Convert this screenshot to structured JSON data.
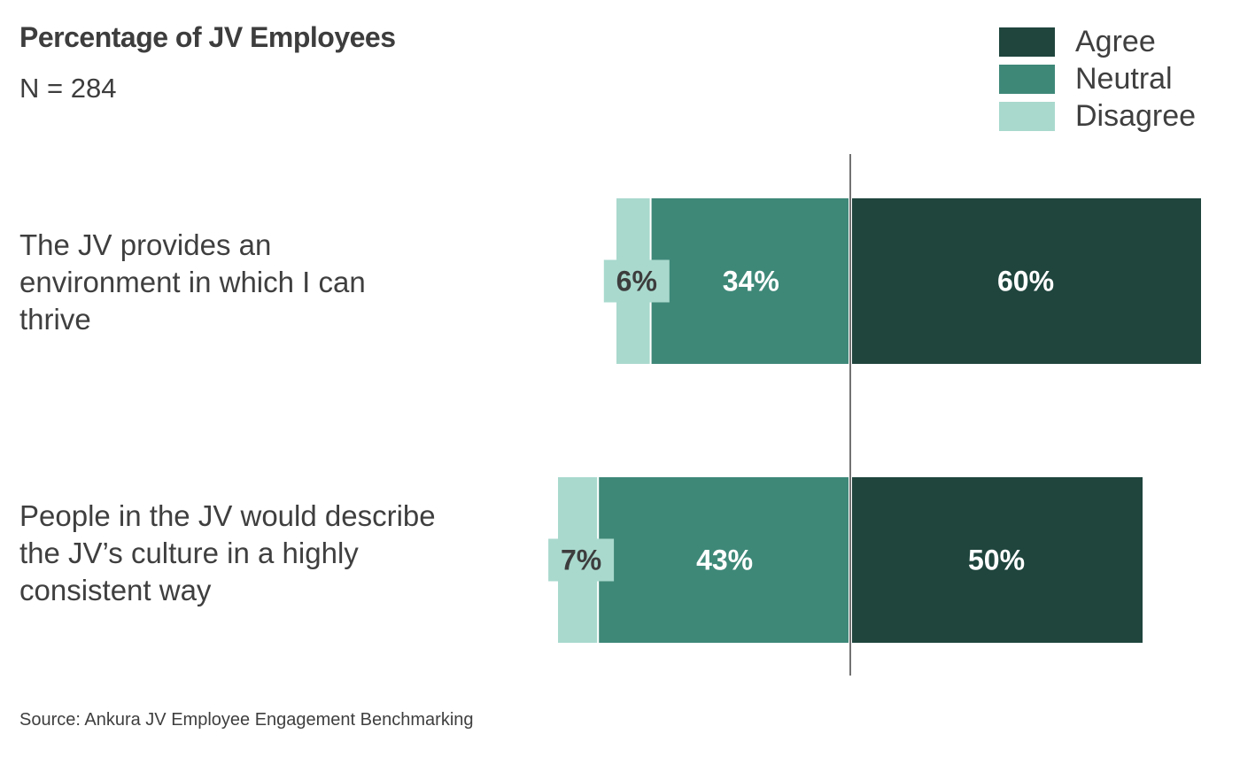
{
  "chart_data": {
    "type": "bar",
    "orientation": "horizontal",
    "stacking": "diverging",
    "title": "Percentage of JV Employees",
    "subtitle": "N = 284",
    "categories": [
      "The JV provides an environment in which I can thrive",
      "People in the JV would describe the JV’s culture in a highly consistent way"
    ],
    "series": [
      {
        "name": "Agree",
        "values": [
          60,
          50
        ],
        "labels": [
          "60%",
          "50%"
        ],
        "color": "#1f453d",
        "label_color": "#ffffff"
      },
      {
        "name": "Neutral",
        "values": [
          34,
          43
        ],
        "labels": [
          "34%",
          "43%"
        ],
        "color": "#3e8878",
        "label_color": "#ffffff"
      },
      {
        "name": "Disagree",
        "values": [
          6,
          7
        ],
        "labels": [
          "6%",
          "7%"
        ],
        "color": "#a9d9cd",
        "label_color": "#3d3d3d"
      }
    ],
    "legend_position": "top-right",
    "grid": false,
    "center_line": true,
    "source": "Source: Ankura JV Employee Engagement Benchmarking"
  }
}
